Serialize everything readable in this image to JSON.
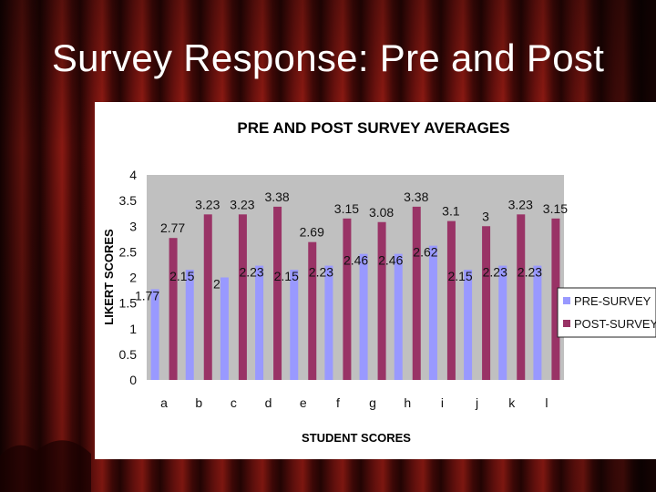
{
  "slide": {
    "title": "Survey Response: Pre and Post"
  },
  "colors": {
    "background": "#3a0706",
    "plot_area": "#c0c0c0",
    "pre_survey": "#9999ff",
    "post_survey": "#993366"
  },
  "chart_data": {
    "type": "bar",
    "title": "PRE AND POST SURVEY AVERAGES",
    "xlabel": "STUDENT SCORES",
    "ylabel": "LIKERT SCORES",
    "ylim": [
      0,
      4
    ],
    "yticks": [
      "0",
      "0.5",
      "1",
      "1.5",
      "2",
      "2.5",
      "3",
      "3.5",
      "4"
    ],
    "categories": [
      "a",
      "b",
      "c",
      "d",
      "e",
      "f",
      "g",
      "h",
      "i",
      "j",
      "k",
      "l"
    ],
    "series": [
      {
        "name": "PRE-SURVEY",
        "values": [
          1.77,
          2.15,
          2,
          2.23,
          2.15,
          2.23,
          2.46,
          2.46,
          2.62,
          2.15,
          2.23,
          2.23
        ],
        "labels": [
          "1.77",
          "2.15",
          "2",
          "2.23",
          "2.15",
          "2.23",
          "2.46",
          "2.46",
          "2.62",
          "2.15",
          "2.23",
          "2.23"
        ]
      },
      {
        "name": "POST-SURVEY",
        "values": [
          2.77,
          3.23,
          3.23,
          3.38,
          2.69,
          3.15,
          3.08,
          3.38,
          3.1,
          3,
          3.23,
          3.15
        ],
        "labels": [
          "2.77",
          "3.23",
          "3.23",
          "3.38",
          "2.69",
          "3.15",
          "3.08",
          "3.38",
          "3.1",
          "3",
          "3.23",
          "3.15"
        ]
      }
    ],
    "legend_position": "right",
    "grid": false
  }
}
